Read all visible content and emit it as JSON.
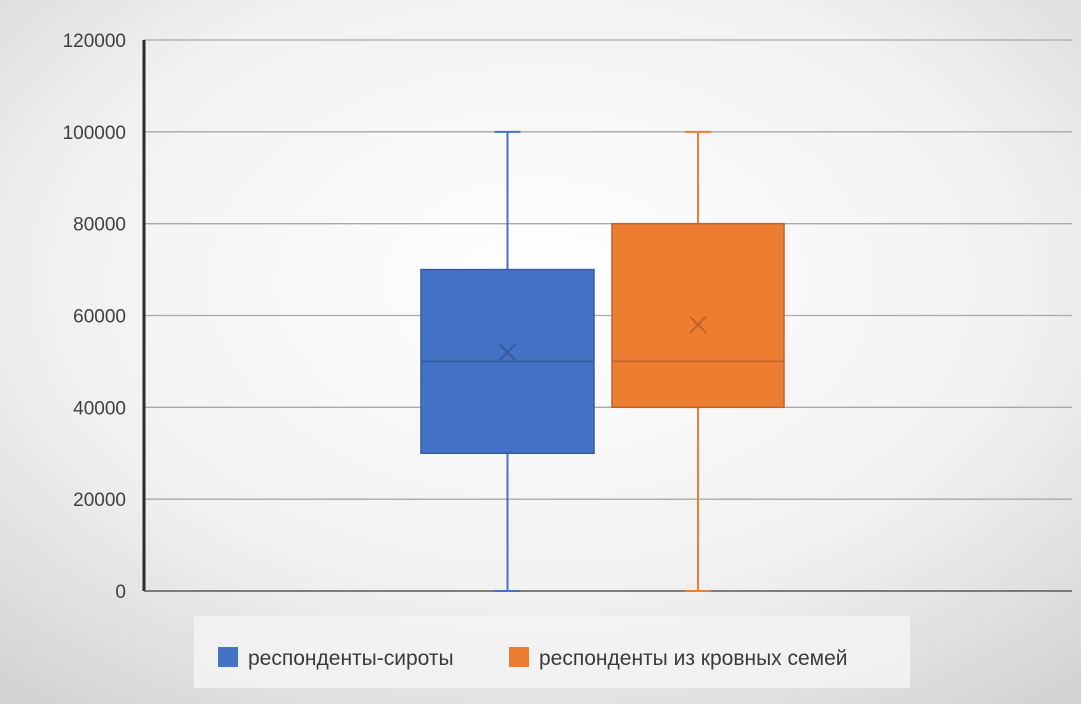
{
  "chart_data": {
    "type": "box",
    "title": "",
    "xlabel": "",
    "ylabel": "",
    "ylim": [
      0,
      120000
    ],
    "yticks": [
      0,
      20000,
      40000,
      60000,
      80000,
      100000,
      120000
    ],
    "grid": true,
    "legend_position": "bottom",
    "series": [
      {
        "name": "респонденты-сироты",
        "color": "#4472C4",
        "min": 0,
        "q1": 30000,
        "median": 50000,
        "q3": 70000,
        "max": 100000,
        "mean": 52000
      },
      {
        "name": "респонденты из кровных семей",
        "color": "#ED7D31",
        "min": 0,
        "q1": 40000,
        "median": 50000,
        "q3": 80000,
        "max": 100000,
        "mean": 58000
      }
    ]
  }
}
